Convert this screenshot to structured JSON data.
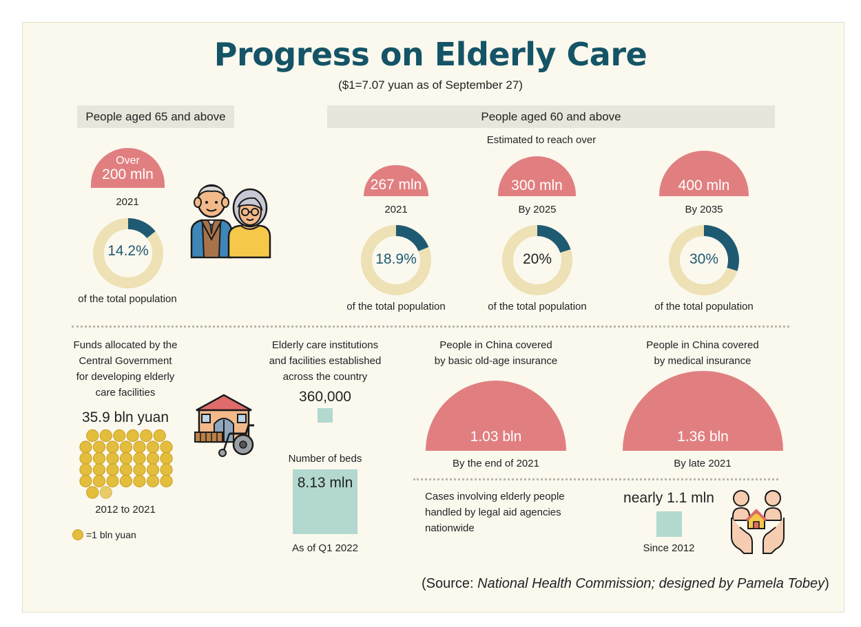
{
  "header": {
    "title": "Progress on Elderly Care",
    "subtitle": "($1=7.07 yuan as of September 27)"
  },
  "sections": {
    "aged65": "People aged 65 and above",
    "aged60": "People aged 60 and above",
    "estimate_note": "Estimated to reach over"
  },
  "population_stats": [
    {
      "amount_prefix": "Over",
      "amount": "200 mln",
      "period": "2021",
      "percent_label": "14.2%",
      "percent": 14.2,
      "caption": "of the total population"
    },
    {
      "amount": "267 mln",
      "period": "2021",
      "percent_label": "18.9%",
      "percent": 18.9,
      "caption": "of the total population"
    },
    {
      "amount": "300 mln",
      "period": "By 2025",
      "percent_label": "20%",
      "percent": 20,
      "caption": "of the total population"
    },
    {
      "amount": "400 mln",
      "period": "By 2035",
      "percent_label": "30%",
      "percent": 30,
      "caption": "of the total population"
    }
  ],
  "funds": {
    "description": [
      "Funds allocated by the",
      "Central Government",
      "for developing elderly",
      "care facilities"
    ],
    "amount": "35.9 bln yuan",
    "period": "2012 to 2021",
    "legend": "=1 bln yuan",
    "coin_value_bln": 35.9
  },
  "institutions": {
    "description": [
      "Elderly care institutions",
      "and facilities established",
      "across the country"
    ],
    "count": "360,000",
    "beds_label": "Number of beds",
    "beds": "8.13 mln",
    "beds_period": "As of Q1 2022"
  },
  "old_age_insurance": {
    "description": [
      "People in China covered",
      "by basic old-age insurance"
    ],
    "amount": "1.03 bln",
    "period": "By the end of 2021"
  },
  "medical_insurance": {
    "description": [
      "People in China covered",
      "by medical insurance"
    ],
    "amount": "1.36 bln",
    "period": "By late 2021"
  },
  "legal_aid": {
    "description": [
      "Cases involving elderly people",
      "handled by legal aid agencies",
      "nationwide"
    ],
    "amount": "nearly 1.1 mln",
    "period": "Since 2012"
  },
  "source": {
    "prefix": "(Source: ",
    "text": "National Health Commission; designed by Pamela Tobey",
    "suffix": ")"
  },
  "colors": {
    "title": "#145466",
    "dome": "#e17f80",
    "donut_fill": "#1f5a73",
    "donut_track": "#ede1b5",
    "square": "#b3d8cf",
    "coin": "#e3bd3c",
    "panel": "#fbf8ee"
  },
  "icons": [
    "elderly-couple-icon",
    "care-home-wheelchair-icon",
    "care-hands-icon",
    "coin-icon"
  ]
}
